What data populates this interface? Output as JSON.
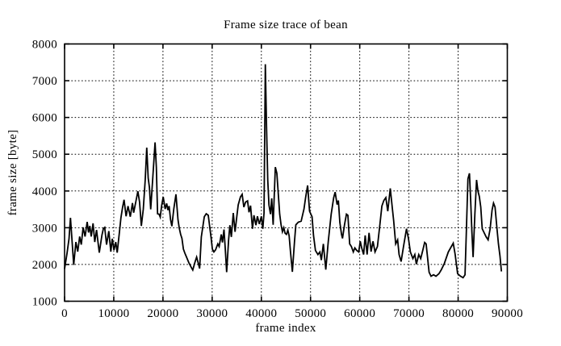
{
  "page": {
    "background": "#ffffff",
    "foreground": "#000000"
  },
  "chart_data": {
    "type": "line",
    "title": "Frame size trace of bean",
    "xlabel": "frame index",
    "ylabel": "frame size [byte]",
    "xlim": [
      0,
      90000
    ],
    "ylim": [
      1000,
      8000
    ],
    "xticks": [
      0,
      10000,
      20000,
      30000,
      40000,
      50000,
      60000,
      70000,
      80000,
      90000
    ],
    "yticks": [
      1000,
      2000,
      3000,
      4000,
      5000,
      6000,
      7000,
      8000
    ],
    "grid": true,
    "grid_style": "dotted",
    "legend_position": "none",
    "line_color": "#000000",
    "background_color": "#ffffff",
    "series": [
      {
        "name": "frame size trace",
        "points": [
          [
            0,
            1880
          ],
          [
            500,
            2300
          ],
          [
            900,
            2700
          ],
          [
            1200,
            3270
          ],
          [
            1550,
            2600
          ],
          [
            1860,
            1990
          ],
          [
            2300,
            2610
          ],
          [
            2680,
            2350
          ],
          [
            3070,
            2760
          ],
          [
            3400,
            2540
          ],
          [
            3780,
            3010
          ],
          [
            4160,
            2760
          ],
          [
            4600,
            3160
          ],
          [
            4870,
            2870
          ],
          [
            5140,
            3050
          ],
          [
            5420,
            2760
          ],
          [
            5800,
            3120
          ],
          [
            6130,
            2610
          ],
          [
            6500,
            2940
          ],
          [
            7050,
            2320
          ],
          [
            7600,
            2800
          ],
          [
            7900,
            2980
          ],
          [
            8160,
            3010
          ],
          [
            8540,
            2540
          ],
          [
            9000,
            2910
          ],
          [
            9400,
            2350
          ],
          [
            9700,
            2700
          ],
          [
            10050,
            2390
          ],
          [
            10400,
            2610
          ],
          [
            10700,
            2320
          ],
          [
            11150,
            2890
          ],
          [
            11450,
            3270
          ],
          [
            11800,
            3560
          ],
          [
            12100,
            3760
          ],
          [
            12500,
            3310
          ],
          [
            12900,
            3590
          ],
          [
            13350,
            3300
          ],
          [
            13800,
            3670
          ],
          [
            14050,
            3410
          ],
          [
            14500,
            3720
          ],
          [
            14900,
            3990
          ],
          [
            15250,
            3700
          ],
          [
            15600,
            3050
          ],
          [
            16000,
            3500
          ],
          [
            16400,
            4300
          ],
          [
            16700,
            5180
          ],
          [
            17000,
            4350
          ],
          [
            17250,
            4100
          ],
          [
            17500,
            3500
          ],
          [
            17900,
            4300
          ],
          [
            18400,
            5320
          ],
          [
            18650,
            4650
          ],
          [
            18900,
            3380
          ],
          [
            19200,
            3370
          ],
          [
            19450,
            3290
          ],
          [
            19750,
            3620
          ],
          [
            20050,
            3840
          ],
          [
            20450,
            3510
          ],
          [
            20750,
            3660
          ],
          [
            21000,
            3480
          ],
          [
            21250,
            3590
          ],
          [
            21550,
            3220
          ],
          [
            21800,
            3040
          ],
          [
            22200,
            3510
          ],
          [
            22650,
            3910
          ],
          [
            23050,
            3220
          ],
          [
            23300,
            3000
          ],
          [
            23600,
            2820
          ],
          [
            23850,
            2710
          ],
          [
            24150,
            2420
          ],
          [
            24450,
            2310
          ],
          [
            24700,
            2230
          ],
          [
            25250,
            2050
          ],
          [
            25800,
            1910
          ],
          [
            26050,
            1850
          ],
          [
            26550,
            2080
          ],
          [
            26850,
            2200
          ],
          [
            27200,
            2020
          ],
          [
            27450,
            1890
          ],
          [
            27800,
            2750
          ],
          [
            28400,
            3300
          ],
          [
            28800,
            3380
          ],
          [
            29200,
            3340
          ],
          [
            29770,
            2750
          ],
          [
            30050,
            2420
          ],
          [
            30350,
            2340
          ],
          [
            30700,
            2400
          ],
          [
            31150,
            2560
          ],
          [
            31420,
            2490
          ],
          [
            31850,
            2820
          ],
          [
            32100,
            2600
          ],
          [
            32400,
            2950
          ],
          [
            32650,
            2450
          ],
          [
            32950,
            1790
          ],
          [
            33350,
            2670
          ],
          [
            33600,
            3070
          ],
          [
            33900,
            2750
          ],
          [
            34300,
            3400
          ],
          [
            34650,
            2890
          ],
          [
            35000,
            3290
          ],
          [
            35300,
            3620
          ],
          [
            35750,
            3840
          ],
          [
            36100,
            3910
          ],
          [
            36450,
            3560
          ],
          [
            36800,
            3700
          ],
          [
            37200,
            3730
          ],
          [
            37500,
            3420
          ],
          [
            37800,
            3600
          ],
          [
            38200,
            2970
          ],
          [
            38500,
            3340
          ],
          [
            38900,
            3070
          ],
          [
            39200,
            3310
          ],
          [
            39600,
            3100
          ],
          [
            40000,
            3310
          ],
          [
            40300,
            2970
          ],
          [
            40550,
            3400
          ],
          [
            40800,
            7450
          ],
          [
            41050,
            5750
          ],
          [
            41300,
            4300
          ],
          [
            41550,
            3620
          ],
          [
            41850,
            3370
          ],
          [
            42100,
            3800
          ],
          [
            42400,
            3080
          ],
          [
            42850,
            4650
          ],
          [
            43150,
            4480
          ],
          [
            43730,
            3370
          ],
          [
            44010,
            3080
          ],
          [
            44280,
            2890
          ],
          [
            44560,
            3000
          ],
          [
            44830,
            2850
          ],
          [
            45100,
            2820
          ],
          [
            45380,
            2930
          ],
          [
            45650,
            2780
          ],
          [
            45930,
            2340
          ],
          [
            46300,
            1800
          ],
          [
            46740,
            2640
          ],
          [
            47010,
            3080
          ],
          [
            47500,
            3150
          ],
          [
            48100,
            3180
          ],
          [
            48660,
            3510
          ],
          [
            49000,
            3820
          ],
          [
            49400,
            4150
          ],
          [
            49800,
            3450
          ],
          [
            50300,
            3300
          ],
          [
            50600,
            2790
          ],
          [
            51000,
            2380
          ],
          [
            51500,
            2270
          ],
          [
            51900,
            2340
          ],
          [
            52200,
            2120
          ],
          [
            52600,
            2560
          ],
          [
            53100,
            1860
          ],
          [
            53600,
            2630
          ],
          [
            54200,
            3370
          ],
          [
            54700,
            3820
          ],
          [
            55000,
            3970
          ],
          [
            55400,
            3630
          ],
          [
            55650,
            3740
          ],
          [
            55950,
            3150
          ],
          [
            56300,
            2820
          ],
          [
            56500,
            2710
          ],
          [
            56900,
            3080
          ],
          [
            57300,
            3370
          ],
          [
            57600,
            3340
          ],
          [
            57950,
            2560
          ],
          [
            58300,
            2490
          ],
          [
            58700,
            2340
          ],
          [
            59000,
            2450
          ],
          [
            59400,
            2380
          ],
          [
            59800,
            2340
          ],
          [
            60100,
            2630
          ],
          [
            60400,
            2450
          ],
          [
            60800,
            2270
          ],
          [
            61100,
            2790
          ],
          [
            61500,
            2270
          ],
          [
            61900,
            2860
          ],
          [
            62300,
            2350
          ],
          [
            62700,
            2630
          ],
          [
            63100,
            2340
          ],
          [
            63600,
            2490
          ],
          [
            64100,
            3100
          ],
          [
            64500,
            3590
          ],
          [
            64900,
            3740
          ],
          [
            65300,
            3820
          ],
          [
            65700,
            3450
          ],
          [
            66200,
            4070
          ],
          [
            66600,
            3560
          ],
          [
            66900,
            3190
          ],
          [
            67300,
            2560
          ],
          [
            67700,
            2670
          ],
          [
            68000,
            2270
          ],
          [
            68400,
            2080
          ],
          [
            68900,
            2490
          ],
          [
            69500,
            2970
          ],
          [
            69900,
            2710
          ],
          [
            70300,
            2340
          ],
          [
            70800,
            2160
          ],
          [
            71200,
            2270
          ],
          [
            71500,
            2010
          ],
          [
            72000,
            2270
          ],
          [
            72400,
            2160
          ],
          [
            72800,
            2380
          ],
          [
            73200,
            2600
          ],
          [
            73500,
            2560
          ],
          [
            74100,
            1790
          ],
          [
            74500,
            1680
          ],
          [
            75000,
            1720
          ],
          [
            75500,
            1680
          ],
          [
            76100,
            1750
          ],
          [
            76600,
            1860
          ],
          [
            77200,
            2030
          ],
          [
            78000,
            2340
          ],
          [
            79000,
            2580
          ],
          [
            79400,
            2270
          ],
          [
            79900,
            1750
          ],
          [
            80500,
            1680
          ],
          [
            81000,
            1640
          ],
          [
            81400,
            1720
          ],
          [
            81700,
            3010
          ],
          [
            82000,
            4330
          ],
          [
            82300,
            4480
          ],
          [
            82550,
            3740
          ],
          [
            82800,
            2890
          ],
          [
            83050,
            2200
          ],
          [
            83400,
            3370
          ],
          [
            83750,
            4300
          ],
          [
            84030,
            4000
          ],
          [
            84300,
            3850
          ],
          [
            84600,
            3560
          ],
          [
            84900,
            2970
          ],
          [
            85200,
            2890
          ],
          [
            85700,
            2750
          ],
          [
            86100,
            2670
          ],
          [
            86500,
            2970
          ],
          [
            86900,
            3480
          ],
          [
            87200,
            3670
          ],
          [
            87500,
            3560
          ],
          [
            87900,
            2970
          ],
          [
            88200,
            2560
          ],
          [
            88500,
            2230
          ],
          [
            88800,
            1810
          ]
        ]
      }
    ]
  }
}
